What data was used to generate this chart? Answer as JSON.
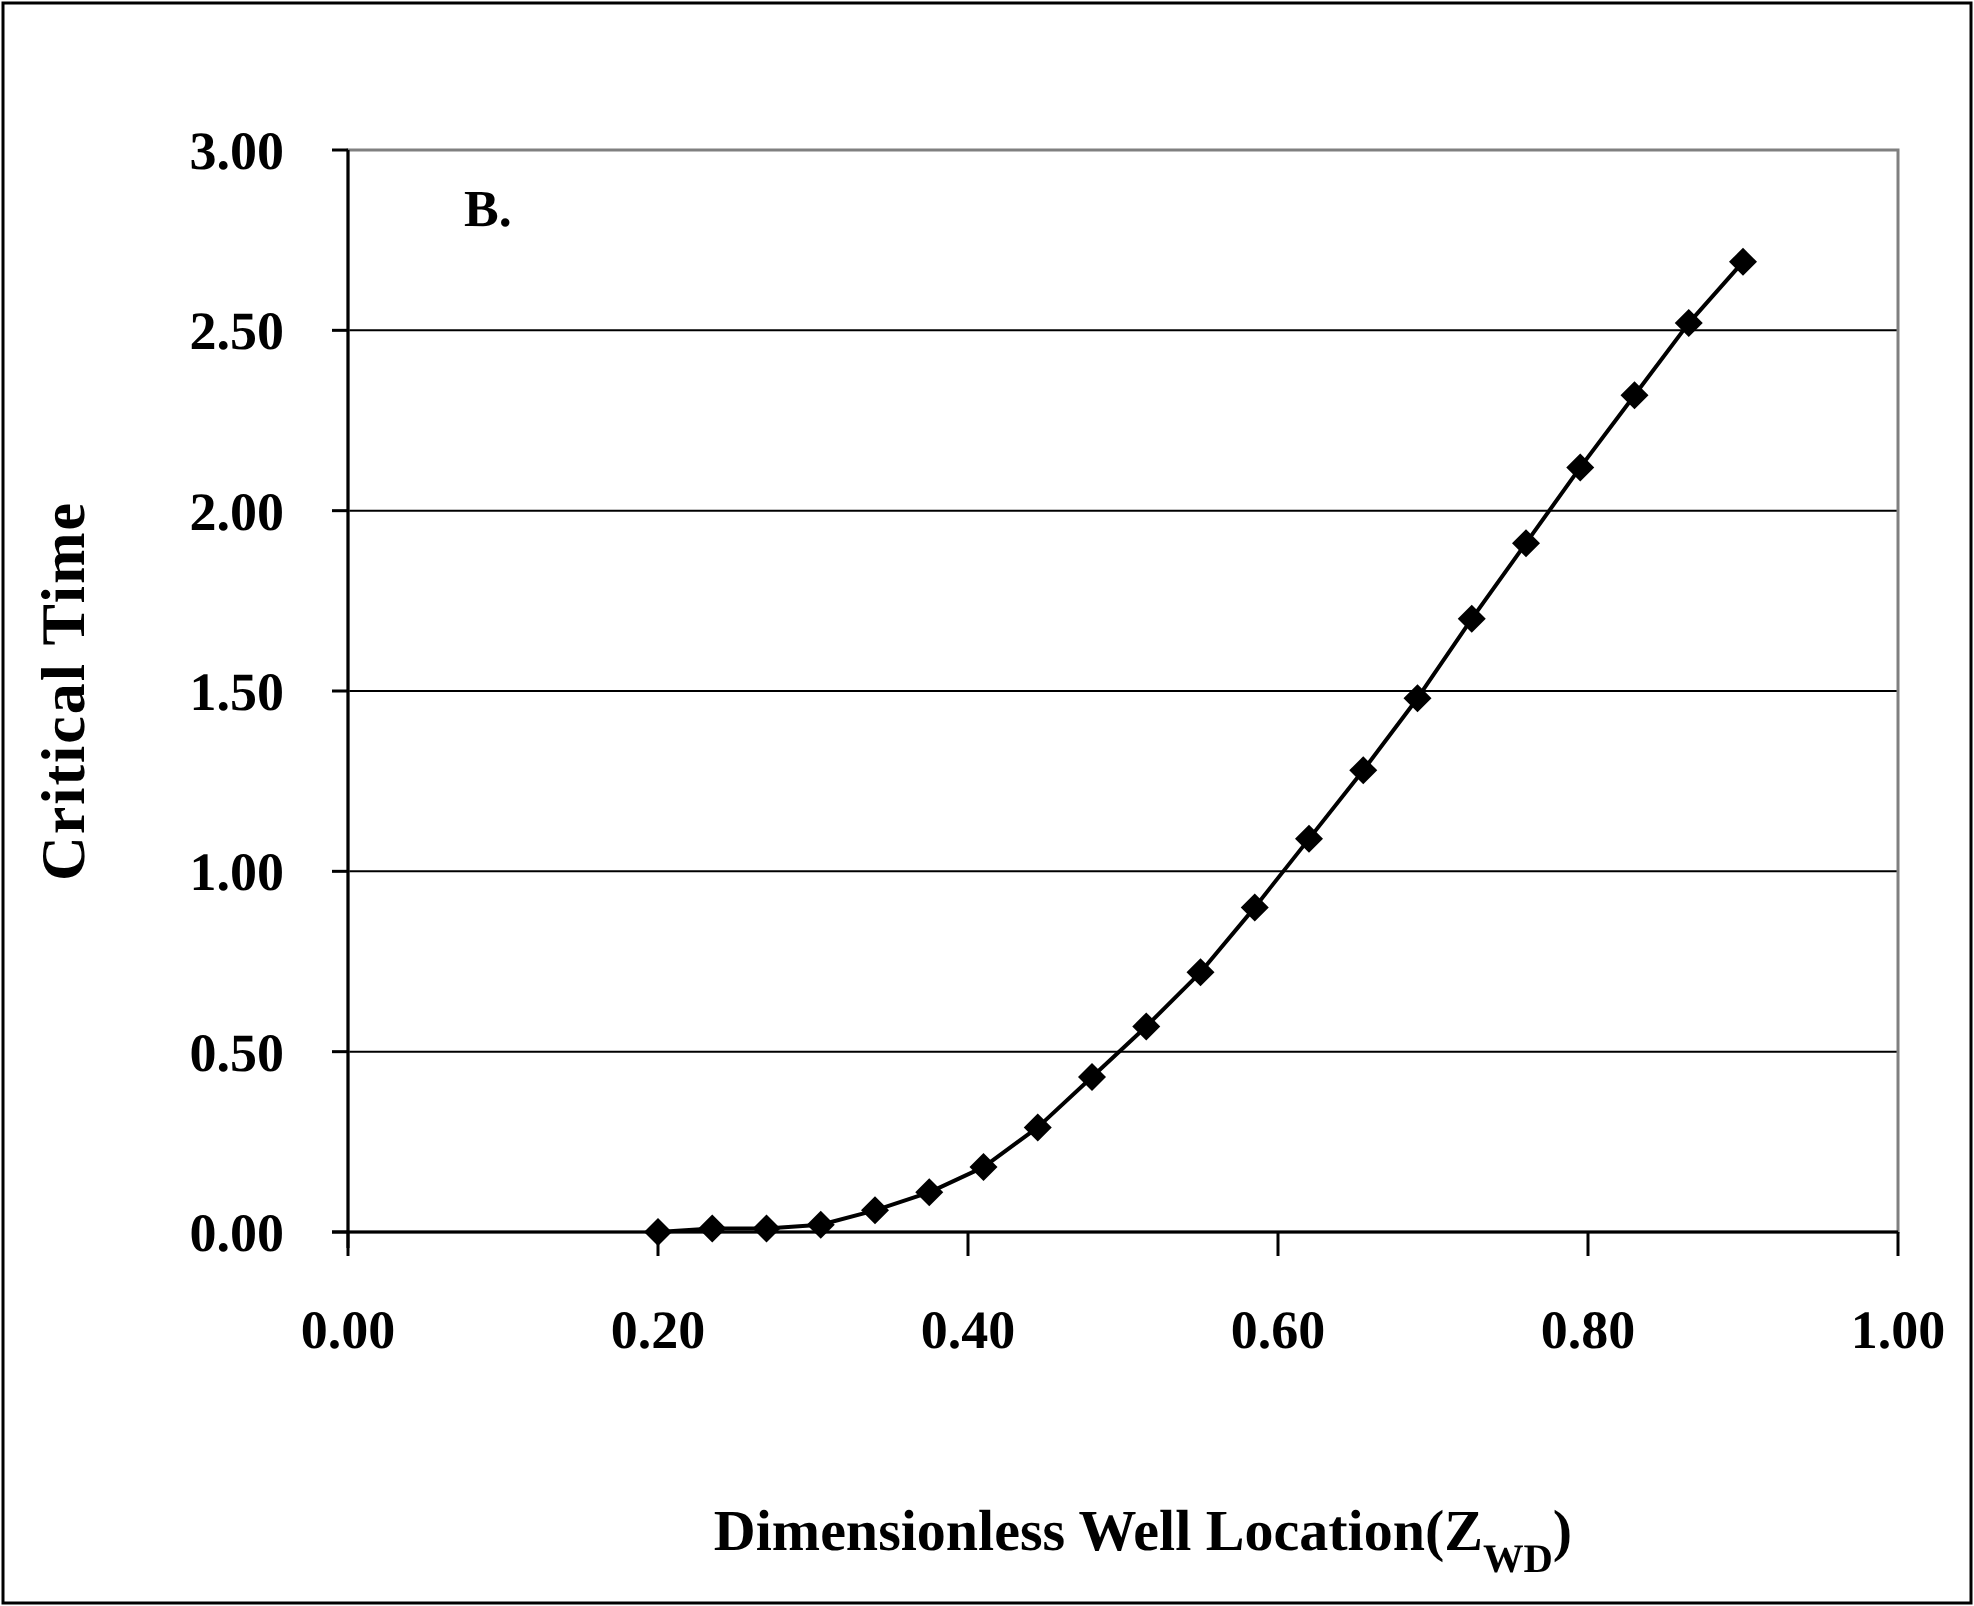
{
  "chart_data": {
    "type": "line",
    "xlabel": "Dimensionless Well Location(Z$_{WD}$)",
    "ylabel": "Critical Time",
    "annotations": [
      "B."
    ],
    "x": [
      0.2,
      0.235,
      0.27,
      0.305,
      0.34,
      0.375,
      0.41,
      0.445,
      0.48,
      0.515,
      0.55,
      0.585,
      0.62,
      0.655,
      0.69,
      0.725,
      0.76,
      0.795,
      0.83,
      0.865,
      0.9
    ],
    "series": [
      {
        "color": "#000000",
        "values": [
          0,
          0.01,
          0.01,
          0.02,
          0.06,
          0.11,
          0.18,
          0.29,
          0.43,
          0.57,
          0.72,
          0.9,
          1.09,
          1.28,
          1.48,
          1.7,
          1.91,
          2.12,
          2.32,
          2.52,
          2.69
        ]
      }
    ],
    "xlim": [
      0,
      1
    ],
    "ylim": [
      0,
      3
    ],
    "xticks": [
      {
        "value": 0,
        "label": "0.00"
      },
      {
        "value": 0.2,
        "label": "0.20"
      },
      {
        "value": 0.4,
        "label": "0.40"
      },
      {
        "value": 0.6,
        "label": "0.60"
      },
      {
        "value": 0.8,
        "label": "0.80"
      },
      {
        "value": 1,
        "label": "1.00"
      }
    ],
    "yticks": [
      {
        "value": 0,
        "label": "0.00"
      },
      {
        "value": 0.5,
        "label": "0.50"
      },
      {
        "value": 1,
        "label": "1.00"
      },
      {
        "value": 1.5,
        "label": "1.50"
      },
      {
        "value": 2,
        "label": "2.00"
      },
      {
        "value": 2.5,
        "label": "2.50"
      },
      {
        "value": 3,
        "label": "3.00"
      }
    ],
    "grid": "y",
    "marker": "diamond",
    "line_style": "solid"
  }
}
